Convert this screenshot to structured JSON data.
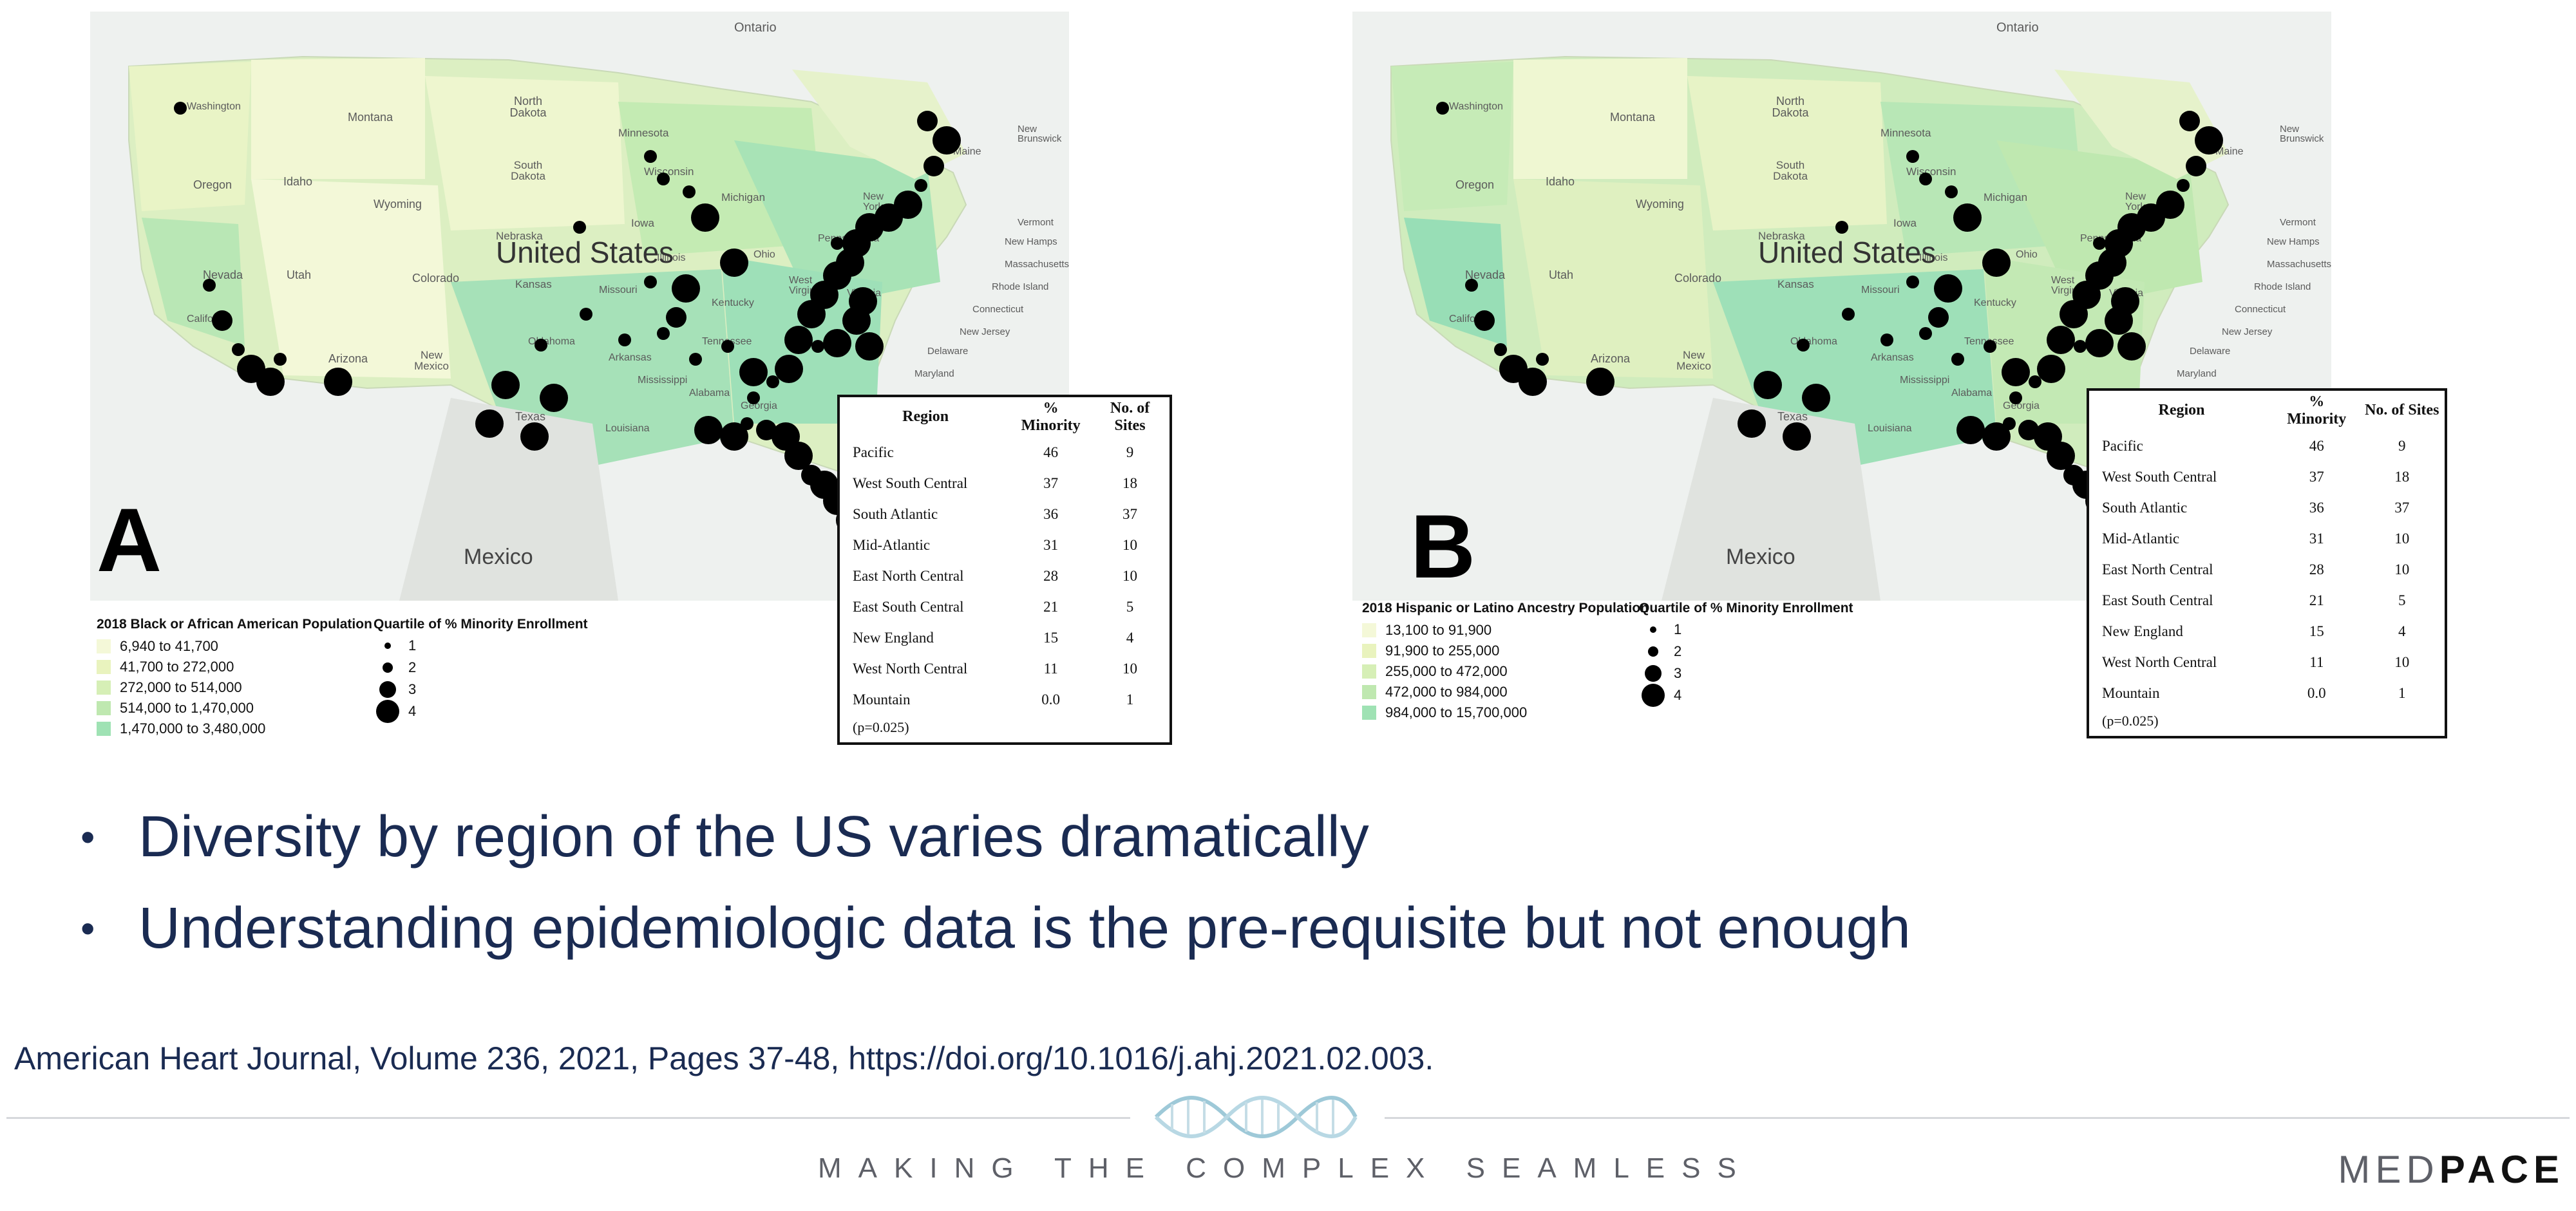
{
  "panels": [
    {
      "letter": "A",
      "legend_title": "2018 Black or African American Population",
      "legend_bins": [
        {
          "label": "6,940 to 41,700",
          "color": "#f4f8d8"
        },
        {
          "label": "41,700 to 272,000",
          "color": "#e9f3be"
        },
        {
          "label": "272,000 to 514,000",
          "color": "#d6efb6"
        },
        {
          "label": "514,000 to 1,470,000",
          "color": "#bfe8b0"
        },
        {
          "label": "1,470,000 to 3,480,000",
          "color": "#9fe2b4"
        }
      ],
      "quartile_title": "Quartile of % Minority Enrollment",
      "quartile_labels": [
        "1",
        "2",
        "3",
        "4"
      ],
      "country_label": "United States",
      "mexico_label": "Mexico",
      "places": [
        [
          "Ontario",
          "place"
        ],
        [
          "North Dakota",
          "place"
        ],
        [
          "Montana",
          "place"
        ],
        [
          "Minnesota",
          "place"
        ],
        [
          "South Dakota",
          "place"
        ],
        [
          "Wisconsin",
          "place"
        ],
        [
          "Oregon",
          "place"
        ],
        [
          "Idaho",
          "place"
        ],
        [
          "Wyoming",
          "place"
        ],
        [
          "Michigan",
          "place"
        ],
        [
          "Nebraska",
          "place"
        ],
        [
          "Iowa",
          "place"
        ],
        [
          "Nevada",
          "place"
        ],
        [
          "Utah",
          "place"
        ],
        [
          "Colorado",
          "place"
        ],
        [
          "Kansas",
          "place"
        ],
        [
          "Illinois",
          "place"
        ],
        [
          "Ohio",
          "place"
        ],
        [
          "Missouri",
          "place"
        ],
        [
          "Kentucky",
          "place"
        ],
        [
          "Oklahoma",
          "place"
        ],
        [
          "Arkansas",
          "place"
        ],
        [
          "Tennessee",
          "place"
        ],
        [
          "Arizona",
          "place"
        ],
        [
          "New Mexico",
          "place"
        ],
        [
          "Mississippi",
          "place"
        ],
        [
          "Alabama",
          "place"
        ],
        [
          "Georgia",
          "place"
        ],
        [
          "Texas",
          "place"
        ],
        [
          "Louisiana",
          "place"
        ],
        [
          "Pennsylvania",
          "place"
        ],
        [
          "West Virginia",
          "place"
        ],
        [
          "Virginia",
          "place"
        ],
        [
          "New York",
          "place"
        ],
        [
          "Maine",
          "place"
        ],
        [
          "New Brunswick",
          "place"
        ],
        [
          "Vermont",
          "place"
        ],
        [
          "New Hamps",
          "place"
        ],
        [
          "Massachusetts",
          "place"
        ],
        [
          "Rhode Island",
          "place"
        ],
        [
          "Connecticut",
          "place"
        ],
        [
          "New Jersey",
          "place"
        ],
        [
          "Delaware",
          "place"
        ],
        [
          "Maryland",
          "place"
        ],
        [
          "Washington",
          "place"
        ],
        [
          "California",
          "place"
        ]
      ],
      "table": {
        "headers": [
          "Region",
          "% Minority",
          "No. of Sites"
        ],
        "rows": [
          [
            "Pacific",
            "46",
            "9"
          ],
          [
            "West South Central",
            "37",
            "18"
          ],
          [
            "South Atlantic",
            "36",
            "37"
          ],
          [
            "Mid-Atlantic",
            "31",
            "10"
          ],
          [
            "East North Central",
            "28",
            "10"
          ],
          [
            "East South Central",
            "21",
            "5"
          ],
          [
            "New England",
            "15",
            "4"
          ],
          [
            "West North Central",
            "11",
            "10"
          ],
          [
            "Mountain",
            "0.0",
            "1"
          ]
        ],
        "note": "(p=0.025)"
      }
    },
    {
      "letter": "B",
      "legend_title": "2018 Hispanic or Latino Ancestry Population",
      "legend_bins": [
        {
          "label": "13,100 to 91,900",
          "color": "#f4f8d8"
        },
        {
          "label": "91,900 to 255,000",
          "color": "#e9f3be"
        },
        {
          "label": "255,000 to 472,000",
          "color": "#d6efb6"
        },
        {
          "label": "472,000 to 984,000",
          "color": "#bfe8b0"
        },
        {
          "label": "984,000 to 15,700,000",
          "color": "#9fe2b4"
        }
      ],
      "quartile_title": "Quartile of % Minority Enrollment",
      "quartile_labels": [
        "1",
        "2",
        "3",
        "4"
      ],
      "country_label": "United States",
      "mexico_label": "Mexico",
      "table": {
        "headers": [
          "Region",
          "% Minority",
          "No. of Sites"
        ],
        "rows": [
          [
            "Pacific",
            "46",
            "9"
          ],
          [
            "West South Central",
            "37",
            "18"
          ],
          [
            "South Atlantic",
            "36",
            "37"
          ],
          [
            "Mid-Atlantic",
            "31",
            "10"
          ],
          [
            "East North Central",
            "28",
            "10"
          ],
          [
            "East South Central",
            "21",
            "5"
          ],
          [
            "New England",
            "15",
            "4"
          ],
          [
            "West North Central",
            "11",
            "10"
          ],
          [
            "Mountain",
            "0.0",
            "1"
          ]
        ],
        "note": "(p=0.025)"
      }
    }
  ],
  "bullets": [
    "Diversity by region of the US varies dramatically",
    "Understanding epidemiologic data is the pre-requisite but not enough"
  ],
  "citation": "American Heart Journal, Volume 236, 2021, Pages 37-48, https://doi.org/10.1016/j.ahj.2021.02.003.",
  "footer": {
    "tagline": "MAKING THE COMPLEX SEAMLESS",
    "logo_a": "MED",
    "logo_b": "PACE"
  }
}
